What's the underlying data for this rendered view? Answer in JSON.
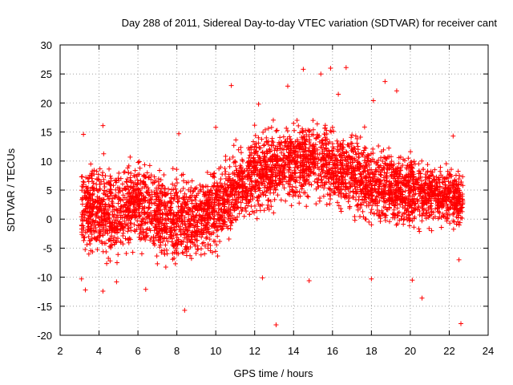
{
  "chart_data": {
    "type": "scatter",
    "title": "Day 288 of 2011, Sidereal Day-to-day VTEC variation (SDTVAR) for receiver cant",
    "xlabel": "GPS time / hours",
    "ylabel": "SDTVAR / TECUs",
    "xlim": [
      2,
      24
    ],
    "ylim": [
      -20,
      30
    ],
    "x_ticks": [
      2,
      4,
      6,
      8,
      10,
      12,
      14,
      16,
      18,
      20,
      22,
      24
    ],
    "y_ticks": [
      -20,
      -15,
      -10,
      -5,
      0,
      5,
      10,
      15,
      20,
      25,
      30
    ],
    "grid": true,
    "marker": "+",
    "marker_color": "#ff0000",
    "series": [
      {
        "name": "SDTVAR",
        "envelope": [
          {
            "x": 3.1,
            "mean": 2,
            "spread": 6
          },
          {
            "x": 4.0,
            "mean": 1,
            "spread": 7
          },
          {
            "x": 5.0,
            "mean": 1,
            "spread": 7
          },
          {
            "x": 6.0,
            "mean": 3,
            "spread": 6
          },
          {
            "x": 7.0,
            "mean": 1,
            "spread": 7
          },
          {
            "x": 8.0,
            "mean": 0,
            "spread": 7
          },
          {
            "x": 9.0,
            "mean": 0,
            "spread": 6
          },
          {
            "x": 10.0,
            "mean": 2,
            "spread": 6
          },
          {
            "x": 11.0,
            "mean": 5,
            "spread": 6
          },
          {
            "x": 12.0,
            "mean": 8,
            "spread": 6
          },
          {
            "x": 13.0,
            "mean": 9,
            "spread": 6
          },
          {
            "x": 14.0,
            "mean": 10,
            "spread": 6
          },
          {
            "x": 15.0,
            "mean": 10,
            "spread": 6
          },
          {
            "x": 16.0,
            "mean": 9,
            "spread": 6
          },
          {
            "x": 17.0,
            "mean": 8,
            "spread": 6
          },
          {
            "x": 18.0,
            "mean": 6,
            "spread": 6
          },
          {
            "x": 19.0,
            "mean": 5,
            "spread": 6
          },
          {
            "x": 20.0,
            "mean": 5,
            "spread": 6
          },
          {
            "x": 21.0,
            "mean": 4,
            "spread": 5
          },
          {
            "x": 22.0,
            "mean": 4,
            "spread": 5
          },
          {
            "x": 22.7,
            "mean": 3,
            "spread": 4
          }
        ],
        "points": [
          [
            3.2,
            14.6
          ],
          [
            3.3,
            -12.2
          ],
          [
            3.1,
            -10.3
          ],
          [
            4.2,
            -12.4
          ],
          [
            4.2,
            16.1
          ],
          [
            4.9,
            -10.8
          ],
          [
            6.4,
            -12.1
          ],
          [
            8.1,
            14.7
          ],
          [
            8.4,
            -15.7
          ],
          [
            10.0,
            15.8
          ],
          [
            10.8,
            23.0
          ],
          [
            12.2,
            19.8
          ],
          [
            12.4,
            -10.1
          ],
          [
            13.1,
            -18.2
          ],
          [
            13.7,
            22.9
          ],
          [
            14.5,
            25.8
          ],
          [
            14.8,
            -10.6
          ],
          [
            15.4,
            25.0
          ],
          [
            15.9,
            26.0
          ],
          [
            16.7,
            26.1
          ],
          [
            16.3,
            21.5
          ],
          [
            18.1,
            20.4
          ],
          [
            18.7,
            23.7
          ],
          [
            19.3,
            22.1
          ],
          [
            18.0,
            -10.3
          ],
          [
            20.1,
            -10.5
          ],
          [
            20.6,
            -13.6
          ],
          [
            22.6,
            -18.0
          ],
          [
            22.2,
            14.3
          ],
          [
            22.5,
            -7.0
          ],
          [
            12.6,
            14.0
          ],
          [
            14.0,
            16.5
          ],
          [
            15.0,
            17.0
          ],
          [
            16.0,
            15.8
          ],
          [
            17.0,
            14.5
          ]
        ]
      }
    ]
  }
}
